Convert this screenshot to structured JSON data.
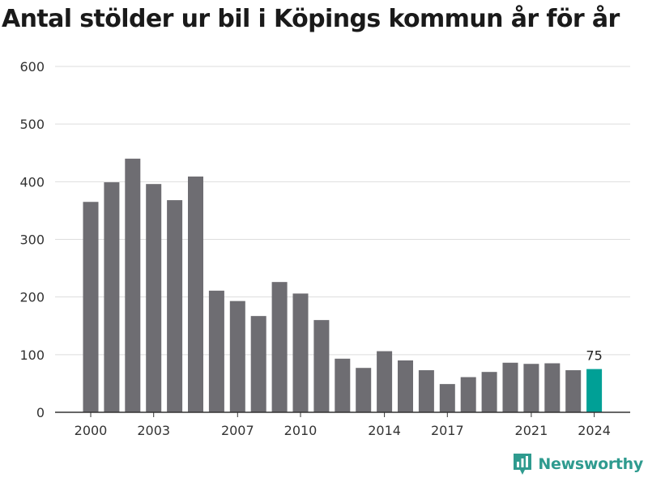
{
  "title": "Antal stölder ur bil i Köpings kommun år för år",
  "brand": {
    "name": "Newsworthy",
    "logo_icon": "newsworthy-logo-icon"
  },
  "colors": {
    "bar": "#6e6d72",
    "highlight": "#00a096",
    "grid": "#dddddd",
    "axis": "#333333",
    "brand": "#2f9b8f"
  },
  "chart_data": {
    "type": "bar",
    "title": "Antal stölder ur bil i Köpings kommun år för år",
    "xlabel": "",
    "ylabel": "",
    "x": [
      2000,
      2001,
      2002,
      2003,
      2004,
      2005,
      2006,
      2007,
      2008,
      2009,
      2010,
      2011,
      2012,
      2013,
      2014,
      2015,
      2016,
      2017,
      2018,
      2019,
      2020,
      2021,
      2022,
      2023,
      2024
    ],
    "values": [
      365,
      399,
      440,
      396,
      368,
      409,
      211,
      193,
      167,
      226,
      206,
      160,
      93,
      77,
      106,
      90,
      73,
      49,
      61,
      70,
      86,
      84,
      85,
      73,
      75
    ],
    "ylim": [
      0,
      600
    ],
    "yticks": [
      0,
      100,
      200,
      300,
      400,
      500,
      600
    ],
    "xtick_labels": [
      2000,
      2003,
      2007,
      2010,
      2014,
      2017,
      2021,
      2024
    ],
    "highlight": {
      "x": 2024,
      "label": "75"
    },
    "grid": true,
    "legend": "none"
  }
}
